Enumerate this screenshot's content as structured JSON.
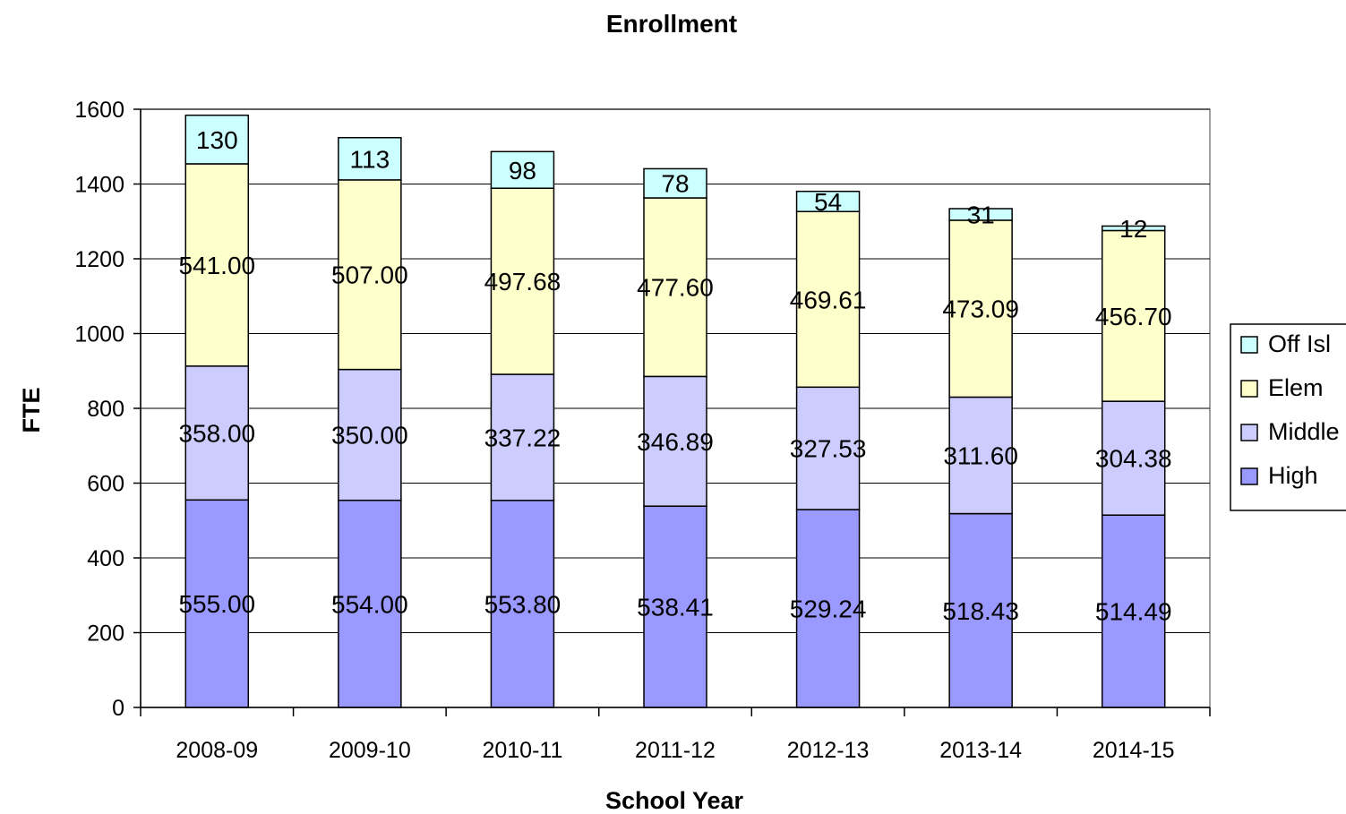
{
  "chart_data": {
    "type": "bar",
    "stacked": true,
    "title": "Enrollment",
    "xlabel": "School Year",
    "ylabel": "FTE",
    "ylim": [
      0,
      1600
    ],
    "yticks": [
      0,
      200,
      400,
      600,
      800,
      1000,
      1200,
      1400,
      1600
    ],
    "grid": true,
    "legend_position": "right",
    "categories": [
      "2008-09",
      "2009-10",
      "2010-11",
      "2011-12",
      "2012-13",
      "2013-14",
      "2014-15"
    ],
    "series": [
      {
        "name": "High",
        "color": "#9999ff",
        "values": [
          555.0,
          554.0,
          553.8,
          538.41,
          529.24,
          518.43,
          514.49
        ],
        "labels": [
          "555.00",
          "554.00",
          "553.80",
          "538.41",
          "529.24",
          "518.43",
          "514.49"
        ]
      },
      {
        "name": "Middle",
        "color": "#ccccff",
        "values": [
          358.0,
          350.0,
          337.22,
          346.89,
          327.53,
          311.6,
          304.38
        ],
        "labels": [
          "358.00",
          "350.00",
          "337.22",
          "346.89",
          "327.53",
          "311.60",
          "304.38"
        ]
      },
      {
        "name": "Elem",
        "color": "#ffffcc",
        "values": [
          541.0,
          507.0,
          497.68,
          477.6,
          469.61,
          473.09,
          456.7
        ],
        "labels": [
          "541.00",
          "507.00",
          "497.68",
          "477.60",
          "469.61",
          "473.09",
          "456.70"
        ]
      },
      {
        "name": "Off Isl",
        "color": "#ccffff",
        "values": [
          130,
          113,
          98,
          78,
          54,
          31,
          12
        ],
        "labels": [
          "130",
          "113",
          "98",
          "78",
          "54",
          "31",
          "12"
        ]
      }
    ],
    "legend_order": [
      "Off Isl",
      "Elem",
      "Middle",
      "High"
    ]
  }
}
